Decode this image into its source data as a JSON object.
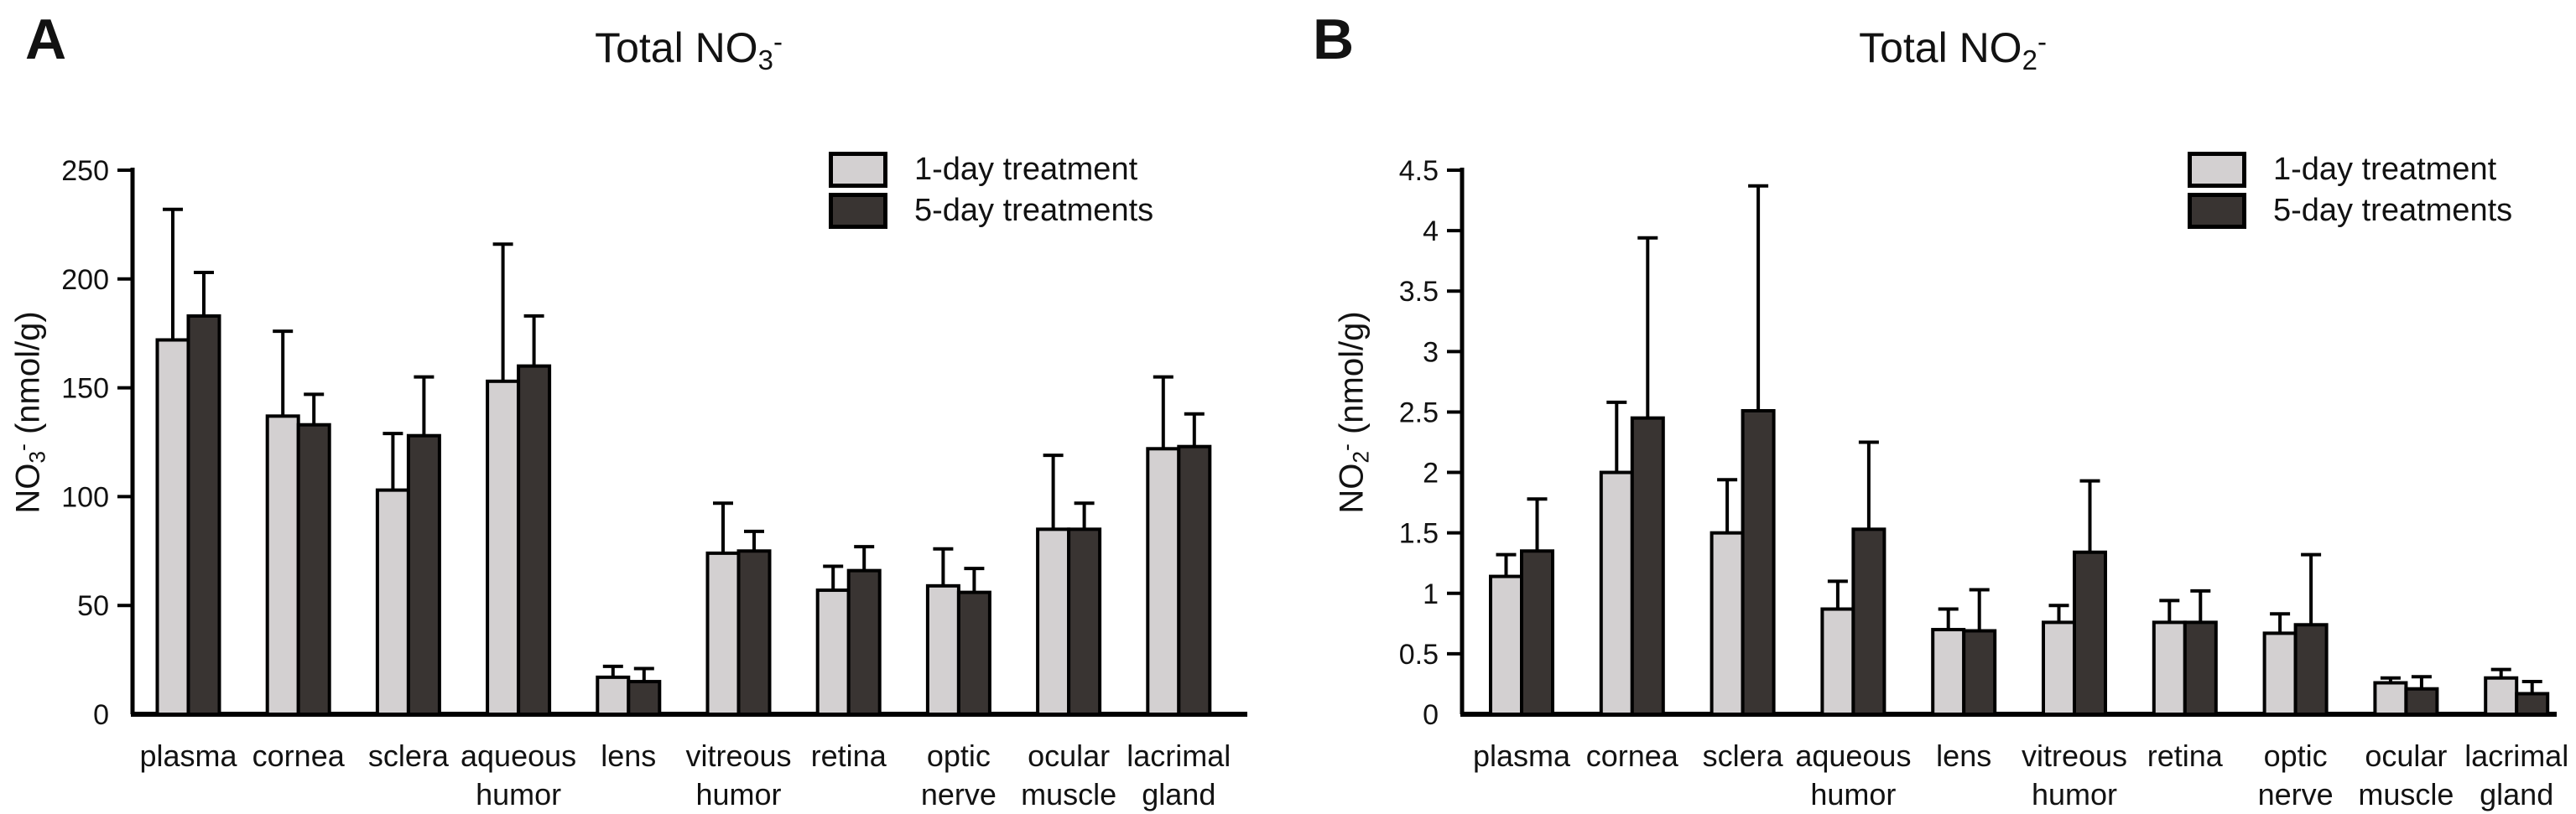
{
  "figure": {
    "background": "#ffffff"
  },
  "colors": {
    "series1_fill": "#d3d0d1",
    "series2_fill": "#393432",
    "outline": "#000000",
    "text": "#121212"
  },
  "legend": {
    "items": [
      {
        "label": "1-day treatment"
      },
      {
        "label": "5-day treatments"
      }
    ]
  },
  "panels": [
    {
      "letter": "A",
      "title": {
        "prefix": "Total NO",
        "sub": "3",
        "sup": "-"
      },
      "ylabel": {
        "prefix": "NO",
        "sub": "3",
        "sup": "-",
        "suffix": " (nmol/g)"
      }
    },
    {
      "letter": "B",
      "title": {
        "prefix": "Total NO",
        "sub": "2",
        "sup": "-"
      },
      "ylabel": {
        "prefix": "NO",
        "sub": "2",
        "sup": "-",
        "suffix": " (nmol/g)"
      }
    }
  ],
  "chart_data": [
    {
      "type": "bar",
      "panel": "A",
      "title": "Total NO3-",
      "xlabel": "",
      "ylabel": "NO3- (nmol/g)",
      "ylim": [
        0,
        250
      ],
      "ytick_values": [
        0,
        50,
        100,
        150,
        200,
        250
      ],
      "ytick_labels": [
        "0",
        "50",
        "100",
        "150",
        "200",
        "250"
      ],
      "grid": false,
      "legend_position": "top-right",
      "error_bars": "upper",
      "categories": [
        "plasma",
        "cornea",
        "sclera",
        "aqueous humor",
        "lens",
        "vitreous humor",
        "retina",
        "optic nerve",
        "ocular muscle",
        "lacrimal gland"
      ],
      "category_lines": [
        [
          "plasma"
        ],
        [
          "cornea"
        ],
        [
          "sclera"
        ],
        [
          "aqueous",
          "humor"
        ],
        [
          "lens"
        ],
        [
          "vitreous",
          "humor"
        ],
        [
          "retina"
        ],
        [
          "optic",
          "nerve"
        ],
        [
          "ocular",
          "muscle"
        ],
        [
          "lacrimal",
          "gland"
        ]
      ],
      "series": [
        {
          "name": "1-day treatment",
          "values": [
            172,
            137,
            103,
            153,
            17,
            74,
            57,
            59,
            85,
            122
          ],
          "errors_plus": [
            60,
            39,
            26,
            63,
            5,
            23,
            11,
            17,
            34,
            33
          ]
        },
        {
          "name": "5-day treatments",
          "values": [
            183,
            133,
            128,
            160,
            15,
            75,
            66,
            56,
            85,
            123
          ],
          "errors_plus": [
            20,
            14,
            27,
            23,
            6,
            9,
            11,
            11,
            12,
            15
          ]
        }
      ]
    },
    {
      "type": "bar",
      "panel": "B",
      "title": "Total NO2-",
      "xlabel": "",
      "ylabel": "NO2- (nmol/g)",
      "ylim": [
        0,
        4.5
      ],
      "ytick_values": [
        0,
        0.5,
        1,
        1.5,
        2,
        2.5,
        3,
        3.5,
        4,
        4.5
      ],
      "ytick_labels": [
        "0",
        "0.5",
        "1",
        "1.5",
        "2",
        "2.5",
        "3",
        "3.5",
        "4",
        "4.5"
      ],
      "grid": false,
      "legend_position": "top-right",
      "error_bars": "upper",
      "categories": [
        "plasma",
        "cornea",
        "sclera",
        "aqueous humor",
        "lens",
        "vitreous humor",
        "retina",
        "optic nerve",
        "ocular muscle",
        "lacrimal gland"
      ],
      "category_lines": [
        [
          "plasma"
        ],
        [
          "cornea"
        ],
        [
          "sclera"
        ],
        [
          "aqueous",
          "humor"
        ],
        [
          "lens"
        ],
        [
          "vitreous",
          "humor"
        ],
        [
          "retina"
        ],
        [
          "optic",
          "nerve"
        ],
        [
          "ocular",
          "muscle"
        ],
        [
          "lacrimal",
          "gland"
        ]
      ],
      "series": [
        {
          "name": "1-day treatment",
          "values": [
            1.14,
            2.0,
            1.5,
            0.87,
            0.7,
            0.76,
            0.76,
            0.67,
            0.26,
            0.3
          ],
          "errors_plus": [
            0.18,
            0.58,
            0.44,
            0.23,
            0.17,
            0.14,
            0.18,
            0.16,
            0.04,
            0.07
          ]
        },
        {
          "name": "5-day treatments",
          "values": [
            1.35,
            2.45,
            2.51,
            1.53,
            0.69,
            1.34,
            0.76,
            0.74,
            0.21,
            0.17
          ],
          "errors_plus": [
            0.43,
            1.49,
            1.86,
            0.72,
            0.34,
            0.59,
            0.26,
            0.58,
            0.1,
            0.1
          ]
        }
      ]
    }
  ]
}
